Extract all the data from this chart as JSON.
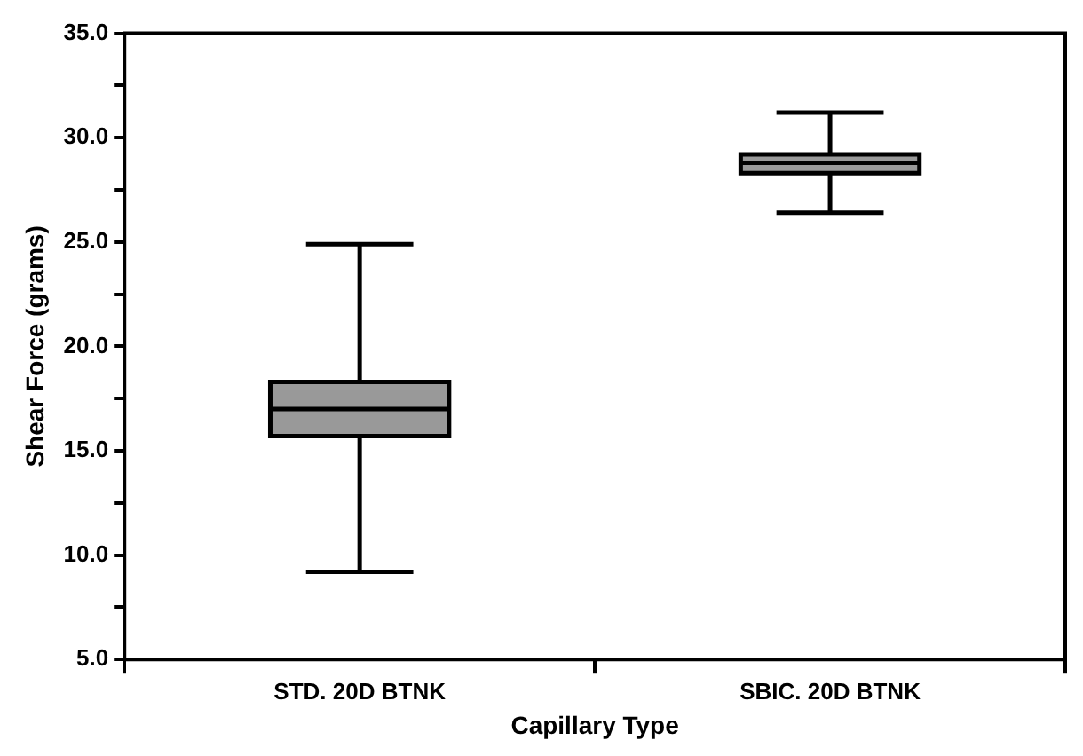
{
  "chart_data": {
    "type": "box",
    "xlabel": "Capillary Type",
    "ylabel": "Shear Force (grams)",
    "categories": [
      "STD. 20D BTNK",
      "SBIC. 20D BTNK"
    ],
    "color": "#999999",
    "boxes": [
      {
        "low": 9.2,
        "q1": 15.7,
        "median": 17.0,
        "q3": 18.3,
        "high": 24.9
      },
      {
        "low": 26.4,
        "q1": 28.3,
        "median": 28.8,
        "q3": 29.2,
        "high": 31.2
      }
    ],
    "ylim": [
      5,
      35
    ],
    "yticks": [
      {
        "value": 5,
        "label": "5.0"
      },
      {
        "value": 7.5,
        "label": null
      },
      {
        "value": 10,
        "label": "10.0"
      },
      {
        "value": 12.5,
        "label": null
      },
      {
        "value": 15,
        "label": "15.0"
      },
      {
        "value": 17.5,
        "label": null
      },
      {
        "value": 20,
        "label": "20.0"
      },
      {
        "value": 22.5,
        "label": null
      },
      {
        "value": 25,
        "label": "25.0"
      },
      {
        "value": 27.5,
        "label": null
      },
      {
        "value": 30,
        "label": "30.0"
      },
      {
        "value": 32.5,
        "label": null
      },
      {
        "value": 35,
        "label": "35.0"
      }
    ]
  }
}
